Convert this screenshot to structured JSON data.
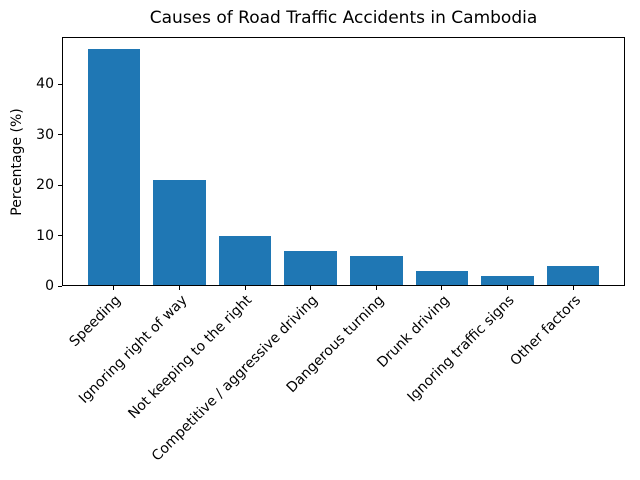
{
  "chart_data": {
    "type": "bar",
    "title": "Causes of Road Traffic Accidents in Cambodia",
    "categories": [
      "Speeding",
      "Ignoring right of way",
      "Not keeping to the right",
      "Competitive / aggressive driving",
      "Dangerous turning",
      "Drunk driving",
      "Ignoring traffic signs",
      "Other factors"
    ],
    "values": [
      47,
      21,
      10,
      7,
      6,
      3,
      2,
      4
    ],
    "xlabel": "",
    "ylabel": "Percentage (%)",
    "ylim": [
      0,
      49.35
    ],
    "yticks": [
      0,
      10,
      20,
      30,
      40
    ],
    "bar_color": "#1f77b4",
    "axis_color": "#000000",
    "grid": false,
    "legend_position": "none",
    "x_tick_rotation_deg": 45
  }
}
